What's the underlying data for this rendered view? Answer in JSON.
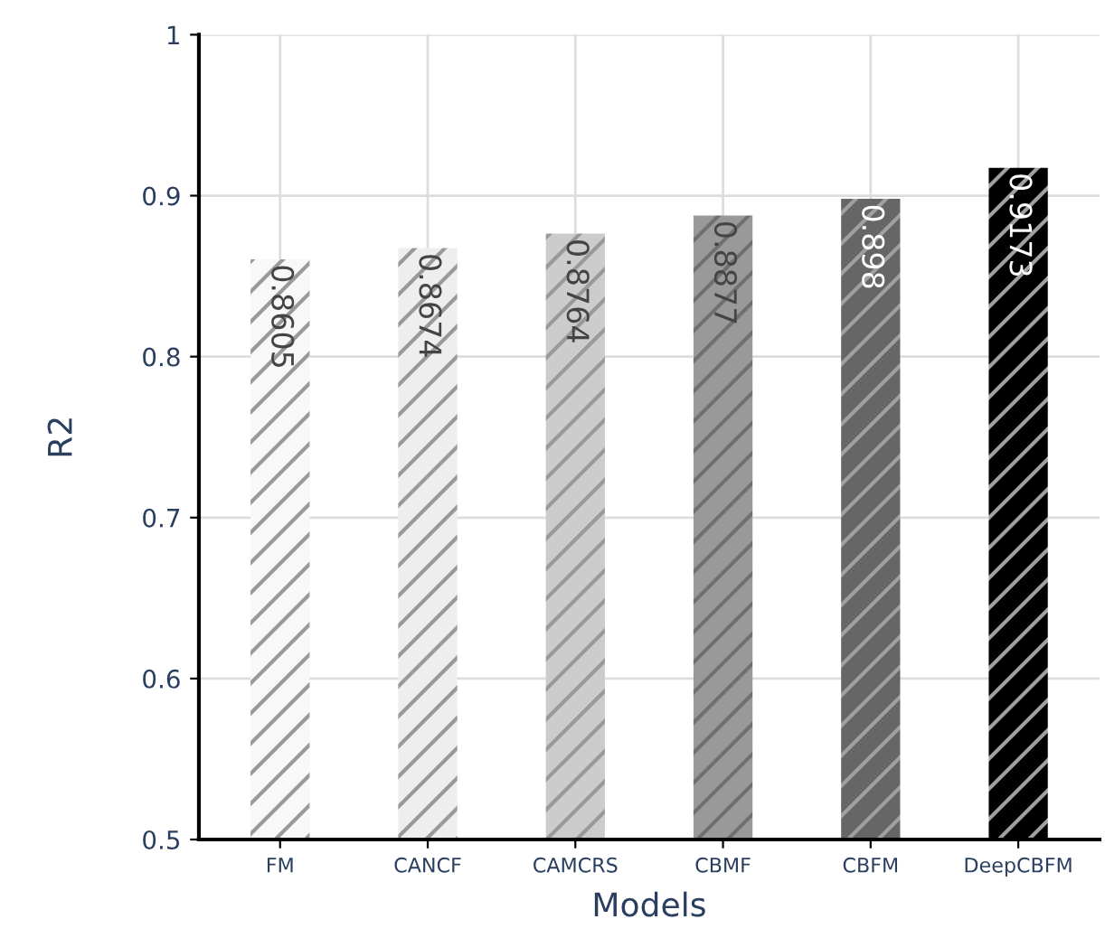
{
  "chart_data": {
    "type": "bar",
    "xlabel": "Models",
    "ylabel": "R2",
    "categories": [
      "FM",
      "CANCF",
      "CAMCRS",
      "CBMF",
      "CBFM",
      "DeepCBFM"
    ],
    "values": [
      0.8605,
      0.8674,
      0.8764,
      0.8877,
      0.898,
      0.9173
    ],
    "colors": [
      "#f8f8f8",
      "#eeeeee",
      "#cccccc",
      "#999999",
      "#666666",
      "#000000"
    ],
    "ylim": [
      0.5,
      1
    ],
    "yticks": [
      0.5,
      0.6,
      0.7,
      0.8,
      0.9,
      1
    ],
    "grid": true,
    "data_labels": true
  }
}
